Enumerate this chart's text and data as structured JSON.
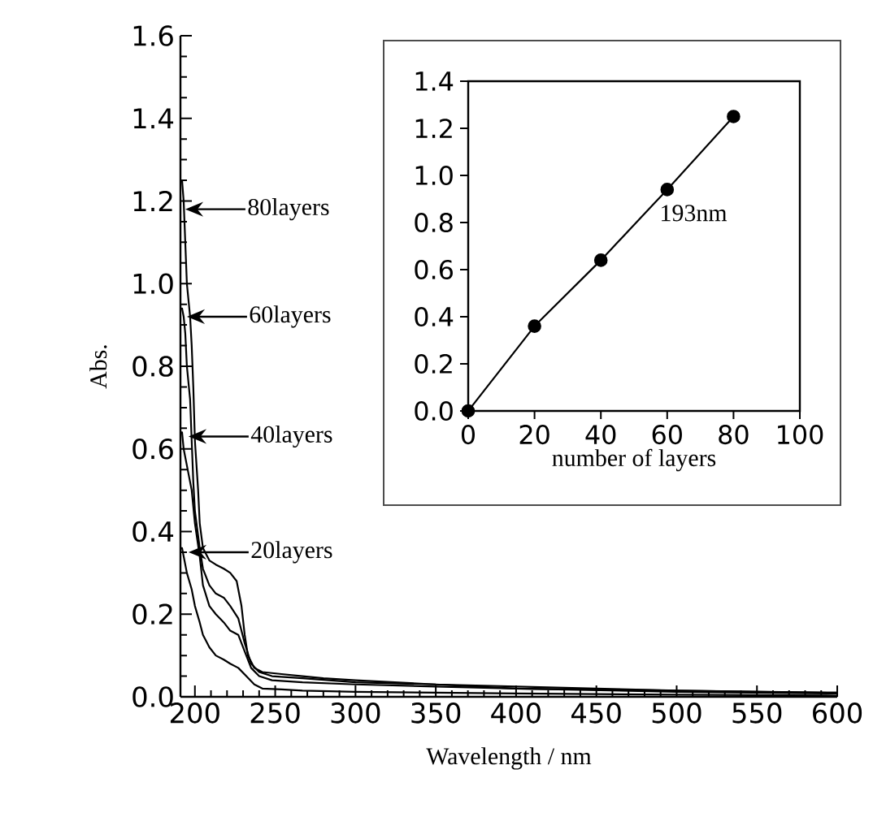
{
  "chart_data": [
    {
      "type": "line",
      "xlabel": "Wavelength / nm",
      "ylabel": "Abs.",
      "xlim": [
        191,
        600
      ],
      "ylim": [
        0,
        1.6
      ],
      "xticks": [
        200,
        250,
        300,
        350,
        400,
        450,
        500,
        550,
        600
      ],
      "yticks": [
        {
          "value": 0,
          "label": "0.0"
        },
        {
          "value": 0.2,
          "label": "0.2"
        },
        {
          "value": 0.4,
          "label": "0.4"
        },
        {
          "value": 0.6,
          "label": "0.6"
        },
        {
          "value": 0.8,
          "label": "0.8"
        },
        {
          "value": 1.0,
          "label": "1.0"
        },
        {
          "value": 1.2,
          "label": "1.2"
        },
        {
          "value": 1.4,
          "label": "1.4"
        },
        {
          "value": 1.6,
          "label": "1.6"
        }
      ],
      "series": [
        {
          "color": "#000000",
          "x": [
            191,
            192,
            193,
            194,
            195,
            197,
            198,
            199,
            200,
            202,
            203,
            205,
            209,
            213,
            218,
            222,
            226,
            229,
            231,
            233,
            237,
            242,
            254,
            267,
            280,
            300,
            350,
            400,
            450,
            500,
            550,
            600
          ],
          "values": [
            1.25,
            1.25,
            1.2,
            1.1,
            1.0,
            0.92,
            0.85,
            0.75,
            0.62,
            0.5,
            0.42,
            0.36,
            0.33,
            0.32,
            0.31,
            0.3,
            0.28,
            0.22,
            0.15,
            0.1,
            0.07,
            0.06,
            0.055,
            0.05,
            0.045,
            0.04,
            0.03,
            0.025,
            0.02,
            0.015,
            0.012,
            0.01
          ]
        },
        {
          "color": "#000000",
          "x": [
            191,
            192,
            193,
            194,
            195,
            197,
            198,
            199,
            200,
            203,
            205,
            209,
            213,
            218,
            222,
            227,
            231,
            235,
            240,
            248,
            267,
            300,
            350,
            400,
            500,
            600
          ],
          "values": [
            0.94,
            0.94,
            0.92,
            0.88,
            0.8,
            0.72,
            0.62,
            0.52,
            0.45,
            0.36,
            0.31,
            0.27,
            0.25,
            0.24,
            0.22,
            0.19,
            0.13,
            0.08,
            0.06,
            0.05,
            0.045,
            0.035,
            0.03,
            0.02,
            0.015,
            0.01
          ]
        },
        {
          "color": "#000000",
          "x": [
            191,
            192,
            193,
            195,
            198,
            200,
            203,
            205,
            209,
            213,
            218,
            222,
            227,
            231,
            235,
            240,
            248,
            267,
            300,
            350,
            400,
            500,
            600
          ],
          "values": [
            0.64,
            0.64,
            0.6,
            0.56,
            0.5,
            0.42,
            0.34,
            0.27,
            0.22,
            0.2,
            0.18,
            0.16,
            0.15,
            0.11,
            0.07,
            0.05,
            0.04,
            0.035,
            0.03,
            0.025,
            0.02,
            0.012,
            0.008
          ]
        },
        {
          "color": "#000000",
          "x": [
            191,
            192,
            193,
            195,
            198,
            200,
            203,
            205,
            209,
            213,
            218,
            222,
            227,
            232,
            237,
            242,
            254,
            267,
            300,
            350,
            400,
            500,
            600
          ],
          "values": [
            0.36,
            0.36,
            0.34,
            0.3,
            0.26,
            0.22,
            0.18,
            0.15,
            0.12,
            0.1,
            0.09,
            0.08,
            0.07,
            0.05,
            0.03,
            0.02,
            0.018,
            0.015,
            0.012,
            0.01,
            0.008,
            0.005,
            0.003
          ]
        }
      ],
      "annotations": [
        {
          "text": "80layers",
          "x": 194,
          "y": 1.18
        },
        {
          "text": "60layers",
          "x": 195,
          "y": 0.92
        },
        {
          "text": "40layers",
          "x": 196,
          "y": 0.63
        },
        {
          "text": "20layers",
          "x": 196,
          "y": 0.35
        }
      ]
    },
    {
      "type": "line",
      "marker": "circle",
      "xlabel": "number of layers",
      "xlim": [
        0,
        100
      ],
      "ylim": [
        0,
        1.4
      ],
      "xticks": [
        0,
        20,
        40,
        60,
        80,
        100
      ],
      "yticks": [
        {
          "value": 0,
          "label": "0.0"
        },
        {
          "value": 0.2,
          "label": "0.2"
        },
        {
          "value": 0.4,
          "label": "0.4"
        },
        {
          "value": 0.6,
          "label": "0.6"
        },
        {
          "value": 0.8,
          "label": "0.8"
        },
        {
          "value": 1.0,
          "label": "1.0"
        },
        {
          "value": 1.2,
          "label": "1.2"
        },
        {
          "value": 1.4,
          "label": "1.4"
        }
      ],
      "series": [
        {
          "color": "#000000",
          "x": [
            0,
            20,
            40,
            60,
            80
          ],
          "values": [
            0,
            0.36,
            0.64,
            0.94,
            1.25
          ]
        }
      ],
      "annotations": [
        "193nm"
      ]
    }
  ]
}
